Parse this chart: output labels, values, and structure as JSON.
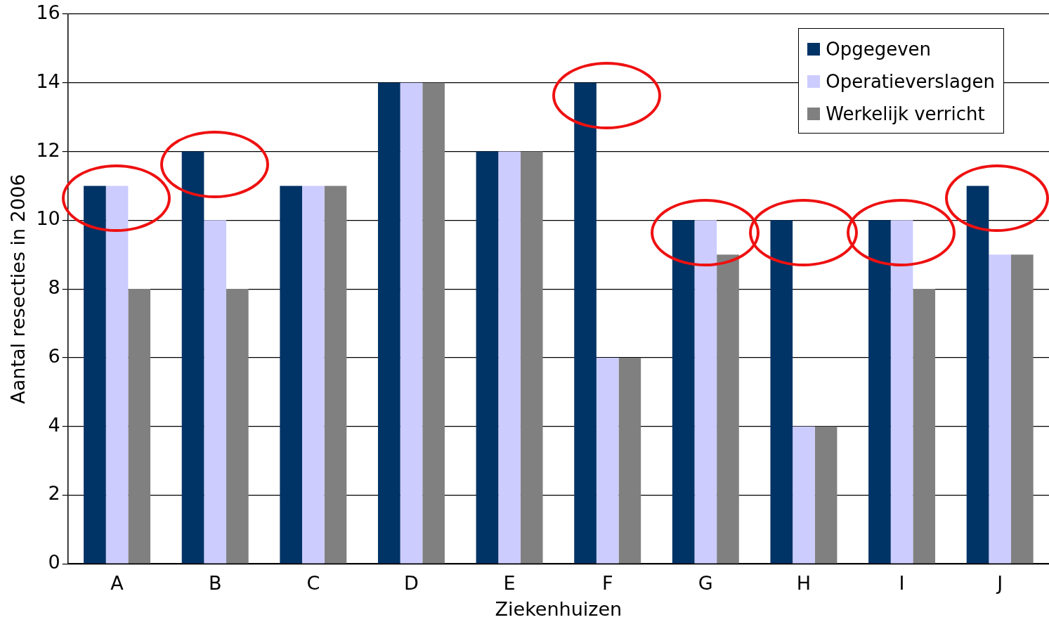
{
  "chart_data": {
    "type": "bar",
    "xlabel": "Ziekenhuizen",
    "ylabel": "Aantal resecties in 2006",
    "categories": [
      "A",
      "B",
      "C",
      "D",
      "E",
      "F",
      "G",
      "H",
      "I",
      "J"
    ],
    "series": [
      {
        "name": "Opgegeven",
        "color": "#003366",
        "values": [
          11,
          12,
          11,
          14,
          12,
          14,
          10,
          10,
          10,
          11
        ]
      },
      {
        "name": "Operatieverslagen",
        "color": "#ccccff",
        "values": [
          11,
          10,
          11,
          14,
          12,
          6,
          10,
          4,
          10,
          9
        ]
      },
      {
        "name": "Werkelijk verricht",
        "color": "#808080",
        "values": [
          8,
          8,
          11,
          14,
          12,
          6,
          9,
          4,
          8,
          9
        ]
      }
    ],
    "ylim": [
      0,
      16
    ],
    "yticks": [
      0,
      2,
      4,
      6,
      8,
      10,
      12,
      14,
      16
    ],
    "grid": "y",
    "legend": "top right"
  }
}
